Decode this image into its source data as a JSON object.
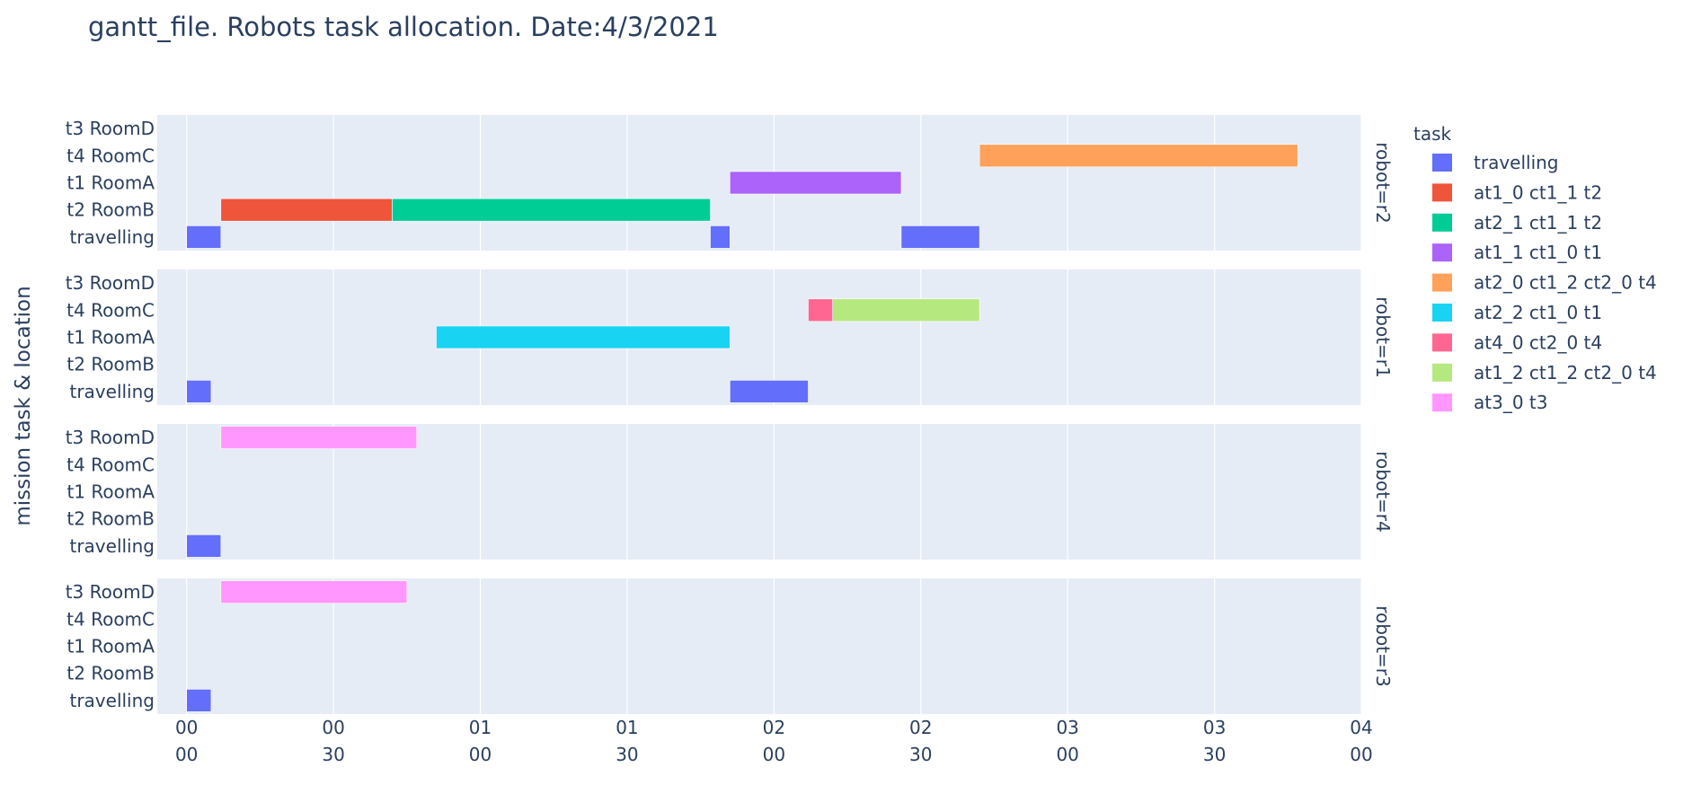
{
  "chart_data": {
    "type": "gantt",
    "title": "gantt_file. Robots task allocation. Date:4/3/2021",
    "ylabel": "mission task & location",
    "xlabel": "",
    "x_unit": "minutes since 00:00",
    "xlim": [
      -6,
      240
    ],
    "x_ticks": [
      {
        "value": 0,
        "line1": "00",
        "line2": "00"
      },
      {
        "value": 30,
        "line1": "00",
        "line2": "30"
      },
      {
        "value": 60,
        "line1": "01",
        "line2": "00"
      },
      {
        "value": 90,
        "line1": "01",
        "line2": "30"
      },
      {
        "value": 120,
        "line1": "02",
        "line2": "00"
      },
      {
        "value": 150,
        "line1": "02",
        "line2": "30"
      },
      {
        "value": 180,
        "line1": "03",
        "line2": "00"
      },
      {
        "value": 210,
        "line1": "03",
        "line2": "30"
      },
      {
        "value": 240,
        "line1": "04",
        "line2": "00"
      }
    ],
    "categories": [
      "t3 RoomD",
      "t4 RoomC",
      "t1 RoomA",
      "t2 RoomB",
      "travelling"
    ],
    "legend_title": "task",
    "legend_position": "right",
    "series": [
      {
        "name": "travelling",
        "color": "#636efa"
      },
      {
        "name": "at1_0 ct1_1 t2",
        "color": "#ef553b"
      },
      {
        "name": "at2_1 ct1_1 t2",
        "color": "#00cc96"
      },
      {
        "name": "at1_1 ct1_0 t1",
        "color": "#ab63fa"
      },
      {
        "name": "at2_0 ct1_2 ct2_0 t4",
        "color": "#ffa15a"
      },
      {
        "name": "at2_2 ct1_0 t1",
        "color": "#19d3f3"
      },
      {
        "name": "at4_0 ct2_0 t4",
        "color": "#ff6692"
      },
      {
        "name": "at1_2 ct1_2 ct2_0 t4",
        "color": "#b6e880"
      },
      {
        "name": "at3_0 t3",
        "color": "#ff97ff"
      }
    ],
    "facets": [
      {
        "label": "robot=r2",
        "bars": [
          {
            "task": "travelling",
            "row": "travelling",
            "start": 0,
            "end": 7
          },
          {
            "task": "at1_0 ct1_1 t2",
            "row": "t2 RoomB",
            "start": 7,
            "end": 42
          },
          {
            "task": "at2_1 ct1_1 t2",
            "row": "t2 RoomB",
            "start": 42,
            "end": 107
          },
          {
            "task": "travelling",
            "row": "travelling",
            "start": 107,
            "end": 111
          },
          {
            "task": "at1_1 ct1_0 t1",
            "row": "t1 RoomA",
            "start": 111,
            "end": 146
          },
          {
            "task": "travelling",
            "row": "travelling",
            "start": 146,
            "end": 162
          },
          {
            "task": "at2_0 ct1_2 ct2_0 t4",
            "row": "t4 RoomC",
            "start": 162,
            "end": 227
          }
        ]
      },
      {
        "label": "robot=r1",
        "bars": [
          {
            "task": "travelling",
            "row": "travelling",
            "start": 0,
            "end": 5
          },
          {
            "task": "at2_2 ct1_0 t1",
            "row": "t1 RoomA",
            "start": 51,
            "end": 111
          },
          {
            "task": "travelling",
            "row": "travelling",
            "start": 111,
            "end": 127
          },
          {
            "task": "at4_0 ct2_0 t4",
            "row": "t4 RoomC",
            "start": 127,
            "end": 132
          },
          {
            "task": "at1_2 ct1_2 ct2_0 t4",
            "row": "t4 RoomC",
            "start": 132,
            "end": 162
          }
        ]
      },
      {
        "label": "robot=r4",
        "bars": [
          {
            "task": "travelling",
            "row": "travelling",
            "start": 0,
            "end": 7
          },
          {
            "task": "at3_0 t3",
            "row": "t3 RoomD",
            "start": 7,
            "end": 47
          }
        ]
      },
      {
        "label": "robot=r3",
        "bars": [
          {
            "task": "travelling",
            "row": "travelling",
            "start": 0,
            "end": 5
          },
          {
            "task": "at3_0 t3",
            "row": "t3 RoomD",
            "start": 7,
            "end": 45
          }
        ]
      }
    ]
  }
}
